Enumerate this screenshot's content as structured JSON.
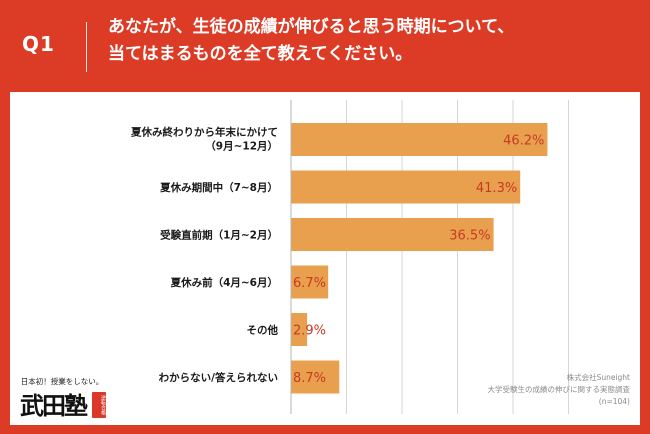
{
  "header": {
    "q_label": "Q1",
    "question_line1": "あなたが、生徒の成績が伸びると思う時期について、",
    "question_line2": "当てはまるものを全て教えてください。"
  },
  "colors": {
    "background": "#dc3b26",
    "panel": "#ffffff",
    "bar": "#e8a04f",
    "value_text": "#c73a22",
    "grid": "#d6d6d6",
    "label_text": "#1a1a1a"
  },
  "chart_data": {
    "type": "bar",
    "orientation": "horizontal",
    "categories": [
      [
        "夏休み終わりから年末にかけて",
        "（9月~12月）"
      ],
      [
        "夏休み期間中（7~8月）"
      ],
      [
        "受験直前期（1月~2月）"
      ],
      [
        "夏休み前（4月~6月）"
      ],
      [
        "その他"
      ],
      [
        "わからない/答えられない"
      ]
    ],
    "values": [
      46.2,
      41.3,
      36.5,
      6.7,
      2.9,
      8.7
    ],
    "value_labels": [
      "46.2%",
      "41.3%",
      "36.5%",
      "6.7%",
      "2.9%",
      "8.7%"
    ],
    "xlim": [
      0,
      50
    ],
    "grid": true,
    "gridlines": [
      10,
      20,
      30,
      40,
      50
    ]
  },
  "logo": {
    "tagline": "日本初！授業をしない。",
    "name": "武田塾",
    "stamp": "逆転合格"
  },
  "source": {
    "line1": "株式会社Suneight",
    "line2": "大学受験生の成績の伸びに関する実態調査",
    "line3": "(n=104)"
  }
}
